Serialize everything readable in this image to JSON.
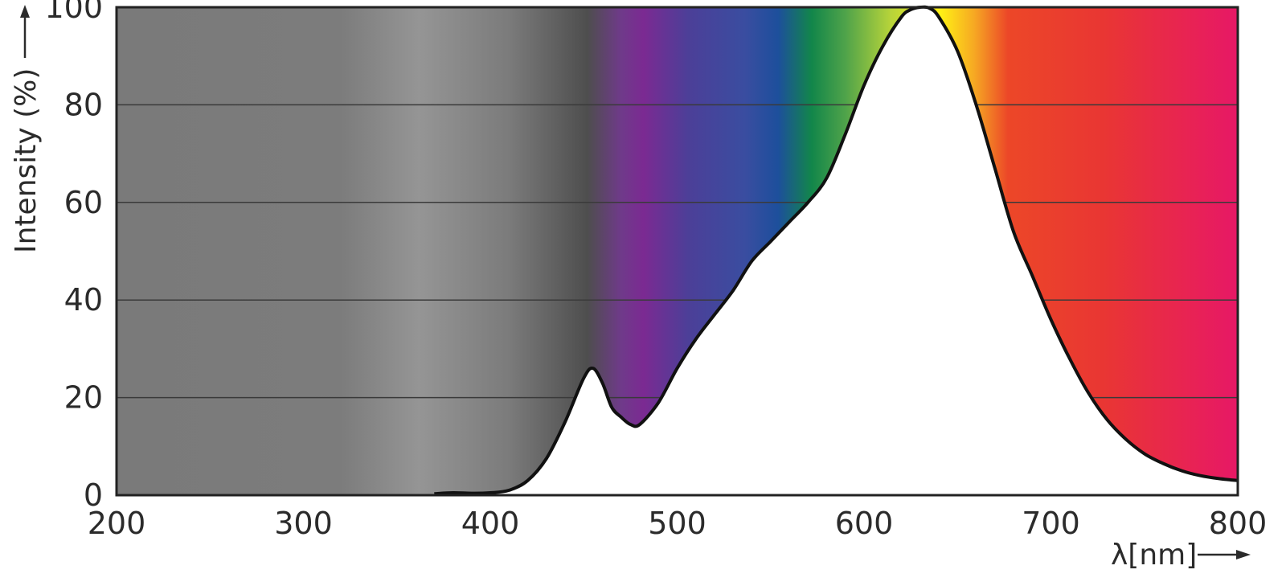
{
  "chart_data": {
    "type": "area",
    "title": "",
    "xlabel": "λ[nm]",
    "ylabel": "Intensity (%)",
    "xlim": [
      200,
      800
    ],
    "ylim": [
      0,
      100
    ],
    "x_ticks": [
      200,
      300,
      400,
      500,
      600,
      700,
      800
    ],
    "y_ticks": [
      0,
      20,
      40,
      60,
      80,
      100
    ],
    "grid": "horizontal",
    "background": "visible-spectrum gradient (grey below ~370 nm, violet → blue → green → yellow → orange → red → magenta)",
    "series": [
      {
        "x": [
          370,
          380,
          390,
          400,
          410,
          420,
          430,
          440,
          450,
          455,
          460,
          465,
          470,
          475,
          480,
          490,
          500,
          510,
          520,
          530,
          540,
          550,
          560,
          570,
          580,
          590,
          600,
          610,
          620,
          625,
          630,
          635,
          640,
          650,
          660,
          670,
          680,
          690,
          700,
          710,
          720,
          730,
          740,
          750,
          760,
          770,
          780,
          790,
          800
        ],
        "y": [
          0.3,
          0.5,
          0.4,
          0.5,
          1,
          3,
          7.5,
          15,
          24,
          26,
          23,
          18,
          16,
          14.5,
          14.5,
          19,
          26,
          32,
          37,
          42,
          48,
          52,
          56,
          60,
          65,
          74,
          84,
          92,
          98,
          99.5,
          100,
          99.8,
          98,
          91,
          80,
          67,
          54,
          45,
          36,
          28,
          21,
          15.5,
          11.5,
          8.5,
          6.5,
          5,
          4,
          3.4,
          3
        ]
      }
    ]
  }
}
